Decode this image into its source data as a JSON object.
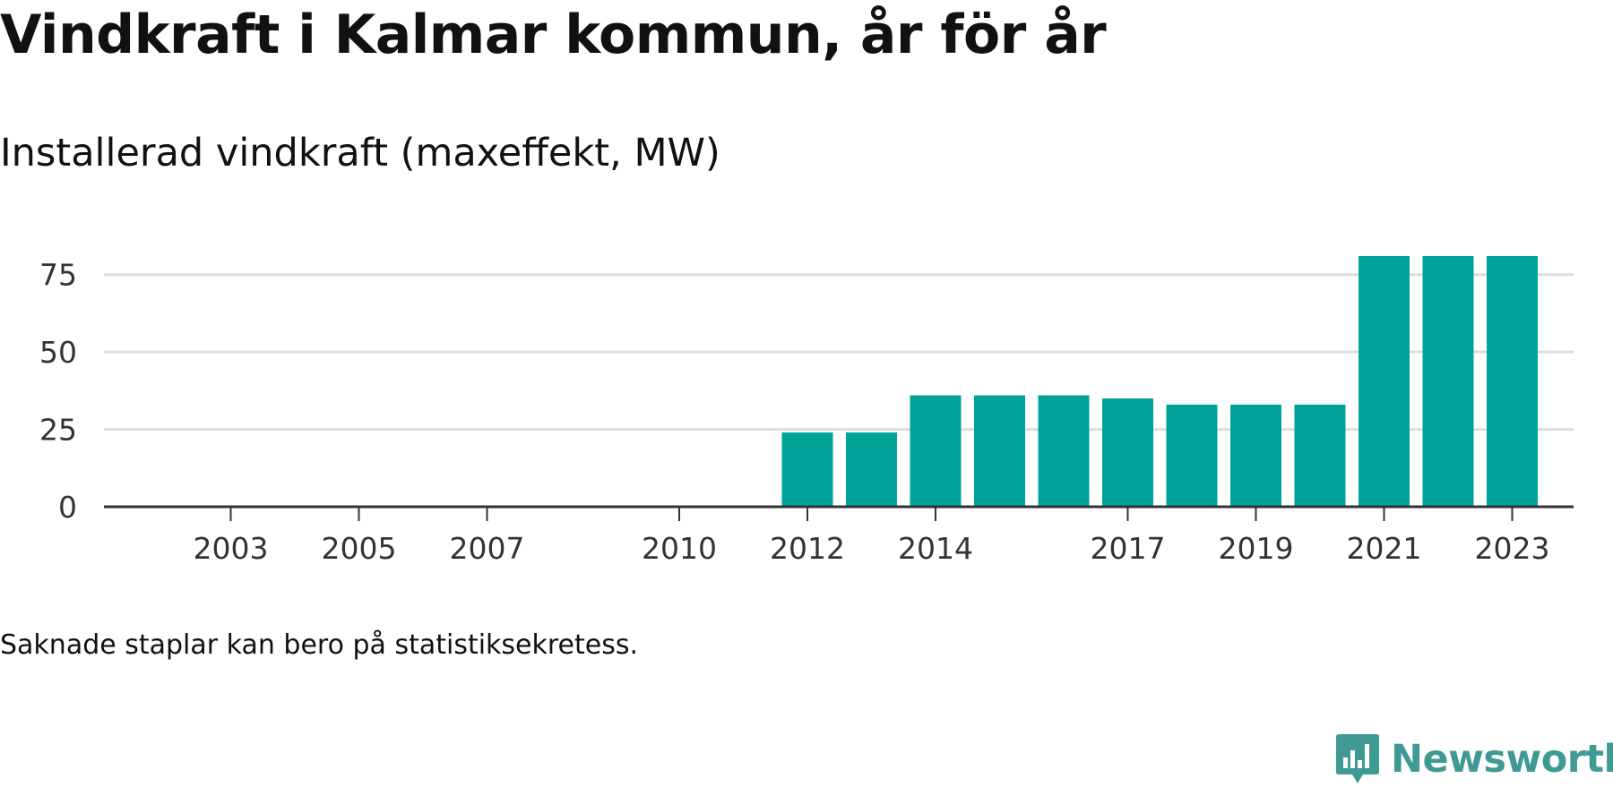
{
  "title": "Vindkraft i Kalmar kommun, år för år",
  "subtitle": "Installerad vindkraft (maxeffekt, MW)",
  "note": "Saknade staplar kan bero på statistiksekretess.",
  "brand": {
    "name": "Newsworthy",
    "color": "#3f9a94"
  },
  "colors": {
    "bar": "#00a39a",
    "grid": "#dddddd",
    "axis": "#333333"
  },
  "chart_data": {
    "type": "bar",
    "categories": [
      "2002",
      "2003",
      "2004",
      "2005",
      "2006",
      "2007",
      "2008",
      "2009",
      "2010",
      "2011",
      "2012",
      "2013",
      "2014",
      "2015",
      "2016",
      "2017",
      "2018",
      "2019",
      "2020",
      "2021",
      "2022",
      "2023"
    ],
    "values": [
      0,
      0,
      0,
      0,
      0,
      0,
      0,
      0,
      0,
      0,
      24,
      24,
      36,
      36,
      36,
      35,
      33,
      33,
      33,
      81,
      81,
      81
    ],
    "tick_labels": [
      "2003",
      "2005",
      "2007",
      "2010",
      "2012",
      "2014",
      "2017",
      "2019",
      "2021",
      "2023"
    ],
    "y_ticks": [
      0,
      25,
      50,
      75
    ],
    "ylim": [
      0,
      81
    ],
    "grid": true
  }
}
